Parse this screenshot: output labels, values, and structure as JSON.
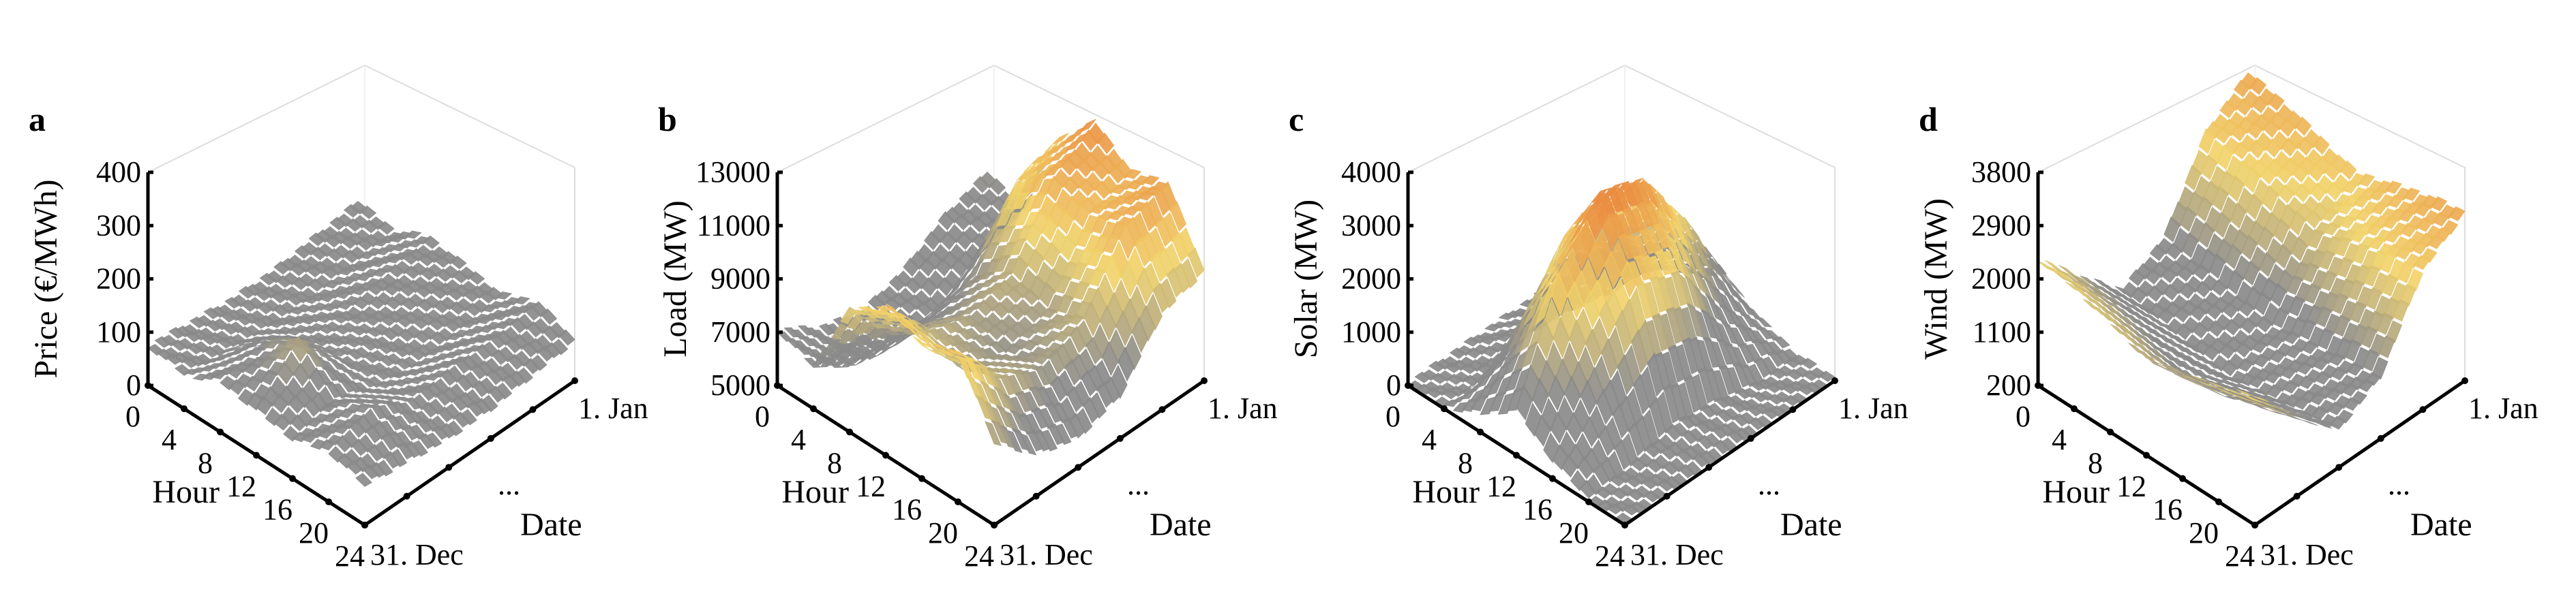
{
  "chart_data": [
    {
      "type": "surface3d",
      "panel": "a",
      "zlabel": "Price (€/MWh)",
      "zlim": [
        0,
        400
      ],
      "zticks": [
        "0",
        "100",
        "200",
        "300",
        "400"
      ],
      "xlabel": "Hour",
      "xticks": [
        "0",
        "4",
        "8",
        "12",
        "16",
        "20",
        "24"
      ],
      "ylabel": "Date",
      "yticks": [
        "31. Dec",
        "...",
        "1. Jan"
      ],
      "hours": [
        0,
        4,
        8,
        12,
        16,
        20,
        24
      ],
      "grid_note_rows": "dates from 31. Dec to 1. Jan (approx.)",
      "values": [
        [
          70,
          60,
          90,
          80,
          70,
          90,
          70
        ],
        [
          60,
          50,
          110,
          160,
          90,
          120,
          60
        ],
        [
          50,
          40,
          60,
          70,
          60,
          80,
          50
        ],
        [
          50,
          40,
          60,
          60,
          50,
          90,
          50
        ],
        [
          60,
          50,
          80,
          70,
          60,
          90,
          60
        ],
        [
          70,
          60,
          90,
          80,
          70,
          100,
          70
        ]
      ]
    },
    {
      "type": "surface3d",
      "panel": "b",
      "zlabel": "Load (MW)",
      "zlim": [
        5000,
        13000
      ],
      "zticks": [
        "5000",
        "7000",
        "9000",
        "11000",
        "13000"
      ],
      "xlabel": "Hour",
      "xticks": [
        "0",
        "4",
        "8",
        "12",
        "16",
        "20",
        "24"
      ],
      "ylabel": "Date",
      "yticks": [
        "31. Dec",
        "...",
        "1. Jan"
      ],
      "hours": [
        0,
        4,
        8,
        12,
        16,
        20,
        24
      ],
      "values": [
        [
          7000,
          6500,
          9500,
          10500,
          10000,
          10500,
          8000
        ],
        [
          6000,
          5500,
          7500,
          8500,
          8000,
          8500,
          6500
        ],
        [
          5500,
          5200,
          7000,
          8000,
          7500,
          7800,
          6000
        ],
        [
          6000,
          5500,
          7500,
          8500,
          8000,
          8500,
          6500
        ],
        [
          7000,
          6500,
          10000,
          11000,
          10500,
          11000,
          8500
        ],
        [
          7500,
          7000,
          10500,
          12000,
          11000,
          11500,
          9000
        ]
      ]
    },
    {
      "type": "surface3d",
      "panel": "c",
      "zlabel": "Solar (MW)",
      "zlim": [
        0,
        4000
      ],
      "zticks": [
        "0",
        "1000",
        "2000",
        "3000",
        "4000"
      ],
      "xlabel": "Hour",
      "xticks": [
        "0",
        "4",
        "8",
        "12",
        "16",
        "20",
        "24"
      ],
      "ylabel": "Date",
      "yticks": [
        "31. Dec",
        "...",
        "1. Jan"
      ],
      "hours": [
        0,
        4,
        8,
        12,
        16,
        20,
        24
      ],
      "values": [
        [
          0,
          0,
          300,
          800,
          300,
          0,
          0
        ],
        [
          0,
          0,
          1500,
          2800,
          1500,
          100,
          0
        ],
        [
          0,
          300,
          2500,
          3800,
          2500,
          300,
          0
        ],
        [
          0,
          200,
          2200,
          3500,
          2200,
          200,
          0
        ],
        [
          0,
          0,
          1200,
          2200,
          1000,
          0,
          0
        ],
        [
          0,
          0,
          200,
          600,
          200,
          0,
          0
        ]
      ]
    },
    {
      "type": "surface3d",
      "panel": "d",
      "zlabel": "Wind (MW)",
      "zlim": [
        200,
        3800
      ],
      "zticks": [
        "200",
        "1100",
        "2000",
        "2900",
        "3800"
      ],
      "xlabel": "Hour",
      "xticks": [
        "0",
        "4",
        "8",
        "12",
        "16",
        "20",
        "24"
      ],
      "ylabel": "Date",
      "yticks": [
        "31. Dec",
        "...",
        "1. Jan"
      ],
      "hours": [
        0,
        4,
        8,
        12,
        16,
        20,
        24
      ],
      "values": [
        [
          2300,
          2200,
          2000,
          1800,
          1900,
          2100,
          2300
        ],
        [
          1500,
          1400,
          1200,
          1000,
          1100,
          1300,
          1500
        ],
        [
          800,
          700,
          600,
          500,
          600,
          700,
          800
        ],
        [
          1200,
          1100,
          1000,
          900,
          1000,
          1100,
          1200
        ],
        [
          2500,
          2400,
          2200,
          2000,
          2200,
          2400,
          2500
        ],
        [
          3000,
          2900,
          2700,
          2500,
          2700,
          2900,
          3000
        ]
      ]
    }
  ],
  "colors": {
    "low": "#8a8a8a",
    "mid": "#f2d46b",
    "high": "#e8823a"
  }
}
